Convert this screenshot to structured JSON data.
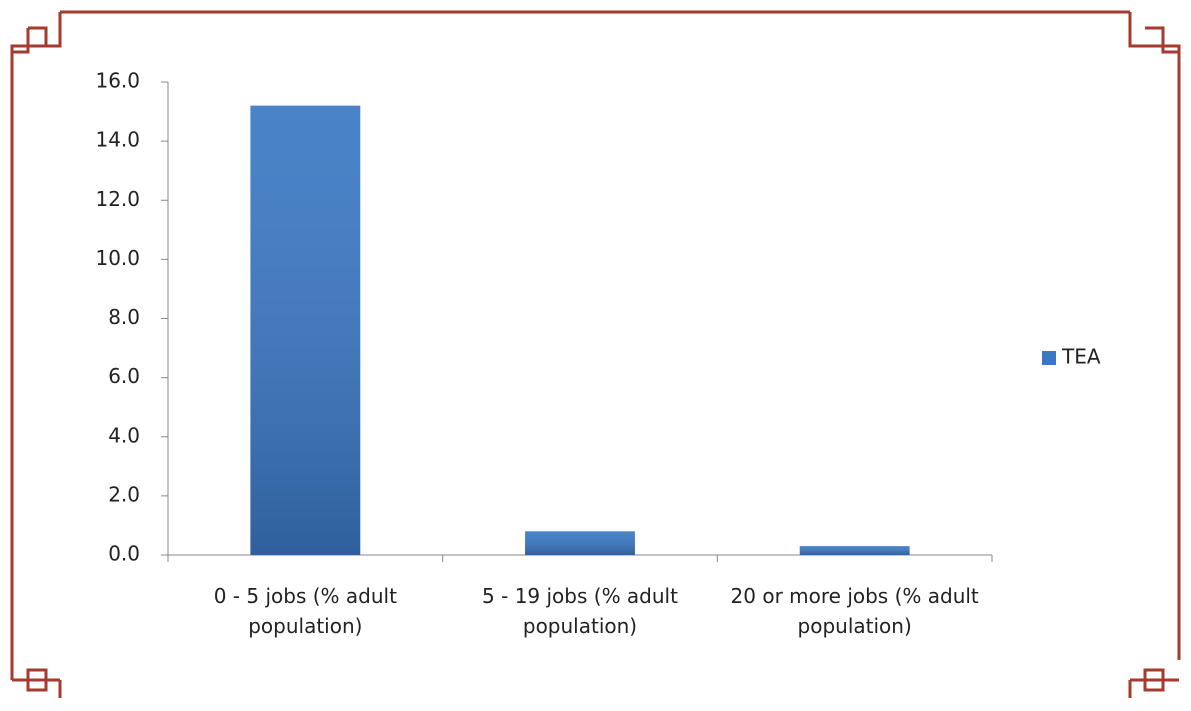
{
  "chart_data": {
    "type": "bar",
    "categories": [
      "0 - 5 jobs (% adult population)",
      "5 - 19 jobs  (% adult population)",
      "20 or more jobs  (% adult population)"
    ],
    "series": [
      {
        "name": "TEA",
        "color": "#3a78c4",
        "values": [
          15.2,
          0.8,
          0.3
        ]
      }
    ],
    "ylim": [
      0,
      16
    ],
    "yticks": [
      {
        "value": 0,
        "label": "0.0"
      },
      {
        "value": 2,
        "label": "2.0"
      },
      {
        "value": 4,
        "label": "4.0"
      },
      {
        "value": 6,
        "label": "6.0"
      },
      {
        "value": 8,
        "label": "8.0"
      },
      {
        "value": 10,
        "label": "10.0"
      },
      {
        "value": 12,
        "label": "12.0"
      },
      {
        "value": 14,
        "label": "14.0"
      },
      {
        "value": 16,
        "label": "16.0"
      }
    ],
    "grid": false,
    "legend": "right"
  }
}
